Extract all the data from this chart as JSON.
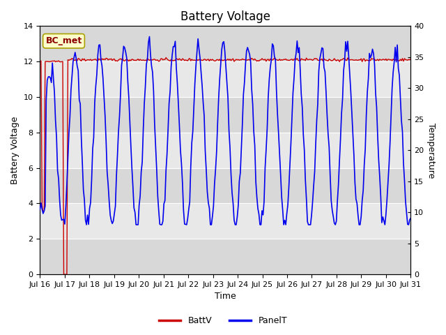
{
  "title": "Battery Voltage",
  "xlabel": "Time",
  "ylabel_left": "Battery Voltage",
  "ylabel_right": "Temperature",
  "annotation_text": "BC_met",
  "ylim_left": [
    0,
    14
  ],
  "ylim_right": [
    0,
    40
  ],
  "yticks_left": [
    0,
    2,
    4,
    6,
    8,
    10,
    12,
    14
  ],
  "yticks_right": [
    0,
    5,
    10,
    15,
    20,
    25,
    30,
    35,
    40
  ],
  "xtick_labels": [
    "Jul 16",
    "Jul 17",
    "Jul 18",
    "Jul 19",
    "Jul 20",
    "Jul 21",
    "Jul 22",
    "Jul 23",
    "Jul 24",
    "Jul 25",
    "Jul 26",
    "Jul 27",
    "Jul 28",
    "Jul 29",
    "Jul 30",
    "Jul 31"
  ],
  "batt_color": "#cc0000",
  "panel_color": "#0000ee",
  "legend_labels": [
    "BattV",
    "PanelT"
  ],
  "bg_bands": [
    {
      "ymin": 0,
      "ymax": 2,
      "color": "#d8d8d8"
    },
    {
      "ymin": 2,
      "ymax": 4,
      "color": "#e8e8e8"
    },
    {
      "ymin": 4,
      "ymax": 6,
      "color": "#d8d8d8"
    },
    {
      "ymin": 6,
      "ymax": 8,
      "color": "#e8e8e8"
    },
    {
      "ymin": 8,
      "ymax": 10,
      "color": "#d8d8d8"
    },
    {
      "ymin": 10,
      "ymax": 12,
      "color": "#e8e8e8"
    },
    {
      "ymin": 12,
      "ymax": 14,
      "color": "#d8d8d8"
    }
  ],
  "title_fontsize": 12,
  "axis_label_fontsize": 9,
  "tick_fontsize": 8
}
